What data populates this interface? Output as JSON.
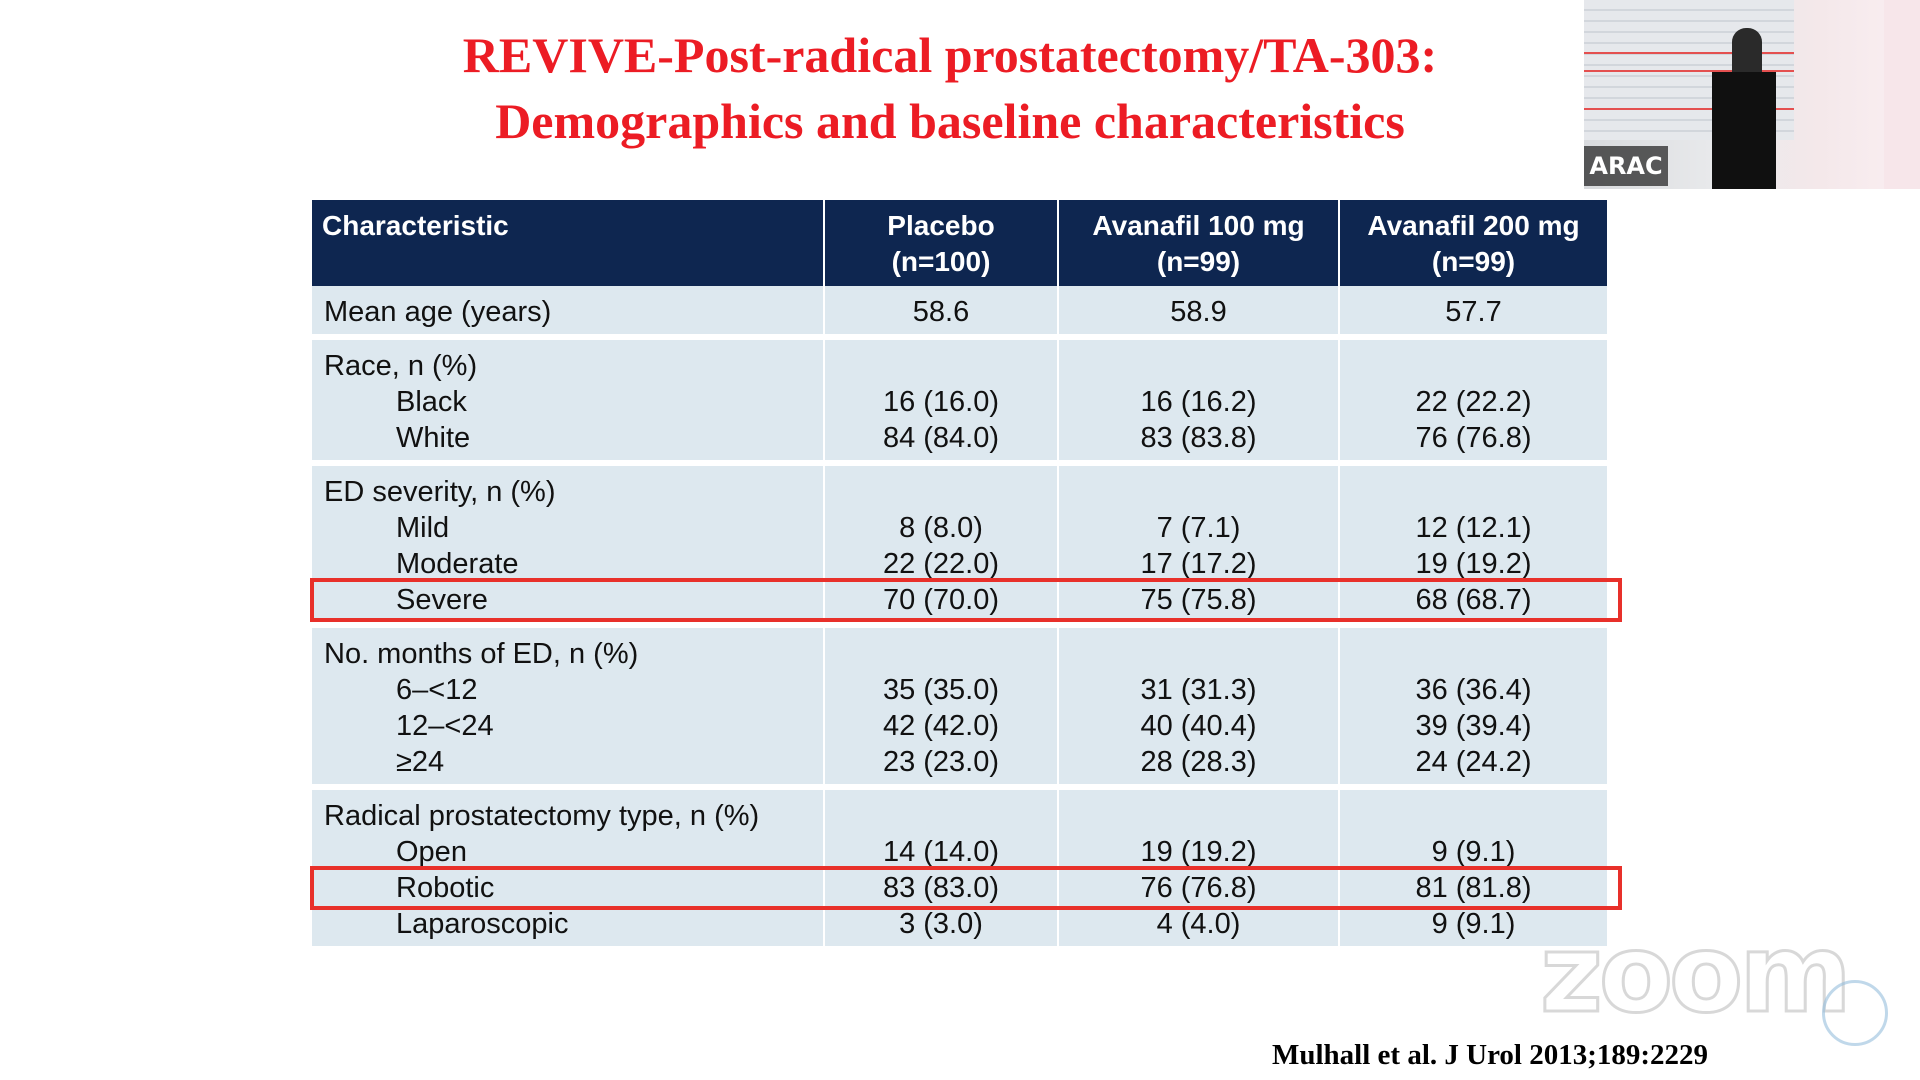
{
  "slide": {
    "title_line1": "REVIVE-Post-radical prostatectomy/TA-303:",
    "title_line2": "Demographics and baseline characteristics",
    "citation": "Mulhall et al. J Urol 2013;189:2229"
  },
  "table": {
    "headers": {
      "characteristic": "Characteristic",
      "placebo": "Placebo",
      "placebo_n": "(n=100)",
      "av100": "Avanafil 100 mg",
      "av100_n": "(n=99)",
      "av200": "Avanafil 200 mg",
      "av200_n": "(n=99)"
    },
    "groups": [
      {
        "label": "Mean age (years)",
        "values": [
          "58.6",
          "58.9",
          "57.7"
        ],
        "rows": []
      },
      {
        "label": "Race, n (%)",
        "values": null,
        "rows": [
          {
            "label": "Black",
            "values": [
              "16 (16.0)",
              "16 (16.2)",
              "22 (22.2)"
            ]
          },
          {
            "label": "White",
            "values": [
              "84 (84.0)",
              "83 (83.8)",
              "76 (76.8)"
            ]
          }
        ]
      },
      {
        "label": "ED severity, n (%)",
        "values": null,
        "rows": [
          {
            "label": "Mild",
            "values": [
              "8 (8.0)",
              "7 (7.1)",
              "12 (12.1)"
            ]
          },
          {
            "label": "Moderate",
            "values": [
              "22 (22.0)",
              "17 (17.2)",
              "19 (19.2)"
            ]
          },
          {
            "label": "Severe",
            "values": [
              "70 (70.0)",
              "75 (75.8)",
              "68 (68.7)"
            ]
          }
        ]
      },
      {
        "label": "No. months of ED, n (%)",
        "values": null,
        "rows": [
          {
            "label": "6–<12",
            "values": [
              "35 (35.0)",
              "31 (31.3)",
              "36 (36.4)"
            ]
          },
          {
            "label": "12–<24",
            "values": [
              "42 (42.0)",
              "40 (40.4)",
              "39 (39.4)"
            ]
          },
          {
            "label": "≥24",
            "values": [
              "23 (23.0)",
              "28 (28.3)",
              "24 (24.2)"
            ]
          }
        ]
      },
      {
        "label": "Radical prostatectomy type, n (%)",
        "values": null,
        "rows": [
          {
            "label": "Open",
            "values": [
              "14 (14.0)",
              "19 (19.2)",
              "9 (9.1)"
            ]
          },
          {
            "label": "Robotic",
            "values": [
              "83 (83.0)",
              "76 (76.8)",
              "81 (81.8)"
            ]
          },
          {
            "label": "Laparoscopic",
            "values": [
              "3 (3.0)",
              "4 (4.0)",
              "9 (9.1)"
            ]
          }
        ]
      }
    ]
  },
  "overlay": {
    "speaker_badge": "ARAC",
    "watermark": "zoom",
    "highlight_color": "#e8302a",
    "header_color": "#0e2650",
    "title_color": "#ec1c24"
  }
}
